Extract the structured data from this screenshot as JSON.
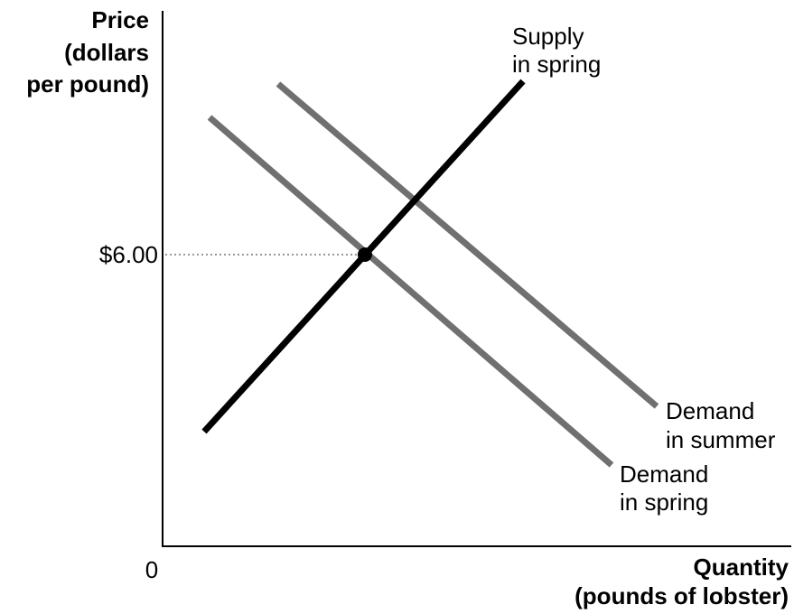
{
  "y_axis": {
    "label": [
      "Price",
      "(dollars",
      "per pound)"
    ],
    "tick": "$6.00"
  },
  "x_axis": {
    "origin": "0",
    "label": [
      "Quantity",
      "(pounds of lobster)"
    ]
  },
  "curves": [
    {
      "label": [
        "Supply",
        "in spring"
      ]
    },
    {
      "label": [
        "Demand",
        "in summer"
      ]
    },
    {
      "label": [
        "Demand",
        "in spring"
      ]
    }
  ]
}
